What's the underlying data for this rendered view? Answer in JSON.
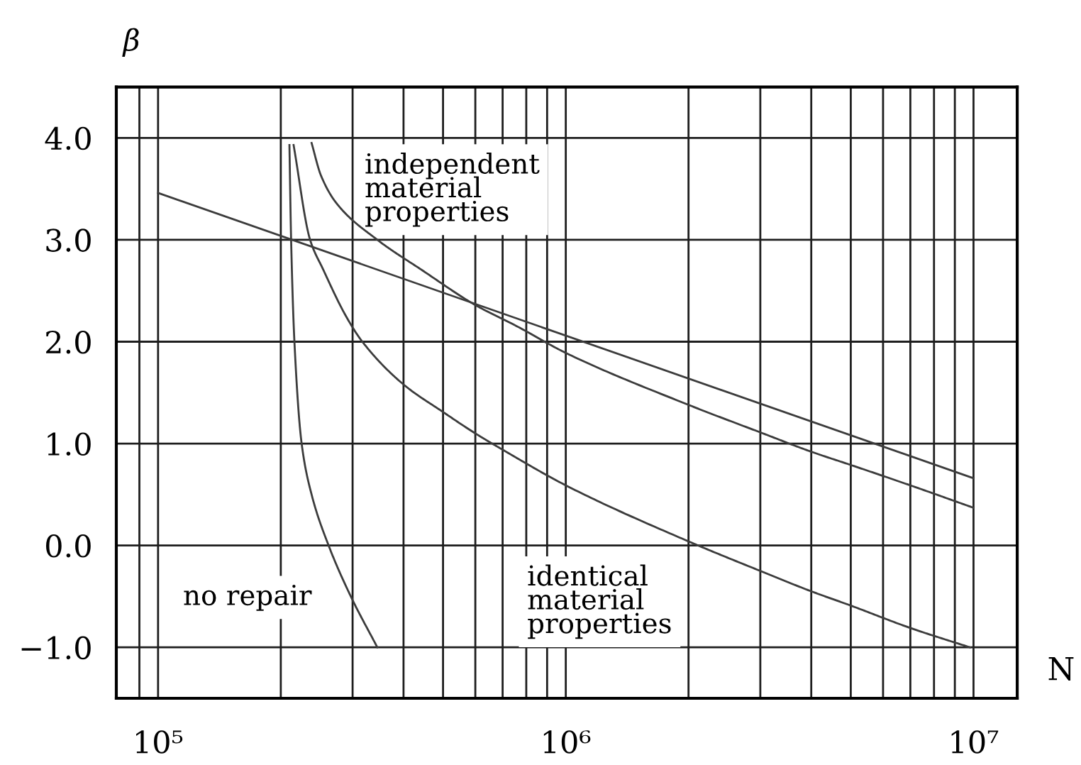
{
  "chart_data": {
    "type": "line",
    "xlabel": "N",
    "ylabel": "β",
    "log": "x",
    "grid": true,
    "xlim": [
      79000,
      12800000
    ],
    "ylim": [
      -1.5,
      4.5
    ],
    "xticks": [
      {
        "value": 90000,
        "label": null
      },
      {
        "value": 100000,
        "label": "10⁵"
      },
      {
        "value": 200000,
        "label": null
      },
      {
        "value": 300000,
        "label": null
      },
      {
        "value": 400000,
        "label": null
      },
      {
        "value": 500000,
        "label": null
      },
      {
        "value": 600000,
        "label": null
      },
      {
        "value": 700000,
        "label": null
      },
      {
        "value": 800000,
        "label": null
      },
      {
        "value": 900000,
        "label": null
      },
      {
        "value": 1000000,
        "label": "10⁶"
      },
      {
        "value": 2000000,
        "label": null
      },
      {
        "value": 3000000,
        "label": null
      },
      {
        "value": 4000000,
        "label": null
      },
      {
        "value": 5000000,
        "label": null
      },
      {
        "value": 6000000,
        "label": null
      },
      {
        "value": 7000000,
        "label": null
      },
      {
        "value": 8000000,
        "label": null
      },
      {
        "value": 9000000,
        "label": null
      },
      {
        "value": 10000000,
        "label": "10⁷"
      }
    ],
    "yticks": [
      {
        "value": -1,
        "label": "−1.0"
      },
      {
        "value": 0,
        "label": "0.0"
      },
      {
        "value": 1,
        "label": "1.0"
      },
      {
        "value": 2,
        "label": "2.0"
      },
      {
        "value": 3,
        "label": "3.0"
      },
      {
        "value": 4,
        "label": "4.0"
      }
    ],
    "series": [
      {
        "color": "#3c3c3c",
        "x": [
          100000,
          10000000
        ],
        "values": [
          3.46,
          0.66
        ]
      },
      {
        "color": "#3c3c3c",
        "x": [
          238000,
          251000,
          275000,
          345000,
          445000,
          600000,
          760000,
          1000000,
          2000000,
          3000000,
          4000000,
          5000000,
          7000000,
          10000000
        ],
        "values": [
          3.95,
          3.63,
          3.35,
          3.0,
          2.7,
          2.36,
          2.15,
          1.89,
          1.38,
          1.11,
          0.92,
          0.79,
          0.59,
          0.37
        ]
      },
      {
        "color": "#3c3c3c",
        "x": [
          215000,
          236000,
          254000,
          290000,
          317000,
          400000,
          500000,
          600000,
          700000,
          1000000,
          2000000,
          3000000,
          4000000,
          5000000,
          7000000,
          9800000
        ],
        "values": [
          3.93,
          3.0,
          2.71,
          2.24,
          2.0,
          1.58,
          1.31,
          1.1,
          0.94,
          0.59,
          0.04,
          -0.25,
          -0.45,
          -0.59,
          -0.81,
          -1.0
        ]
      },
      {
        "color": "#3c3c3c",
        "x": [
          210000,
          212000,
          216000,
          225000,
          238000,
          262000,
          297000,
          345000
        ],
        "values": [
          3.93,
          3.0,
          2.0,
          1.0,
          0.5,
          0.0,
          -0.5,
          -1.0
        ]
      }
    ],
    "annotations": [
      "independent\nmaterial\nproperties",
      "no repair",
      "identical\nmaterial\nproperties"
    ]
  }
}
